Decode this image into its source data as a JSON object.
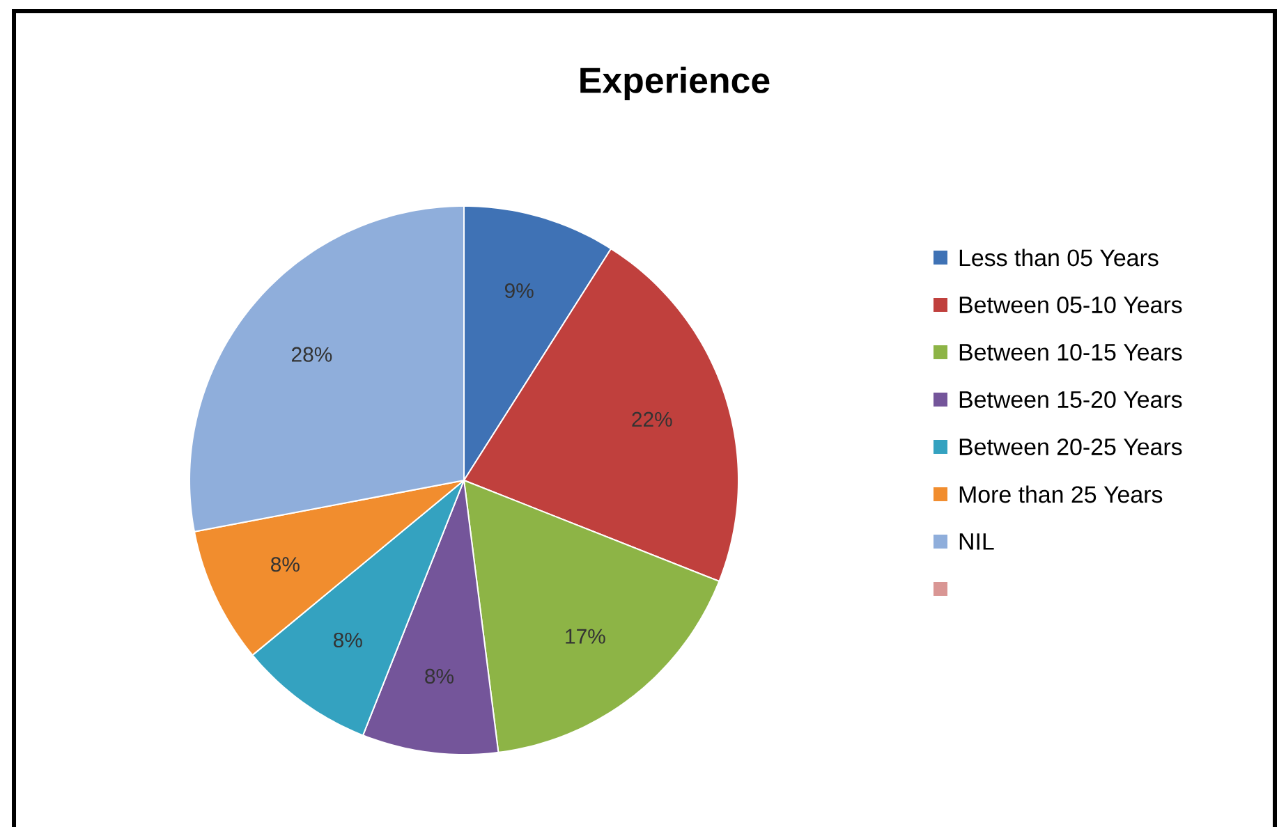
{
  "chart_data": {
    "type": "pie",
    "title": "Experience",
    "categories": [
      "Less than 05 Years",
      "Between 05-10 Years",
      "Between 10-15 Years",
      "Between 15-20 Years",
      "Between 20-25 Years",
      "More than 25 Years",
      "NIL",
      null
    ],
    "values": [
      9,
      22,
      17,
      8,
      8,
      8,
      28,
      0
    ],
    "value_labels": [
      "9%",
      "22%",
      "17%",
      "8%",
      "8%",
      "8%",
      "28%",
      null
    ],
    "colors": [
      "#3f72b5",
      "#c0403d",
      "#8db446",
      "#74559a",
      "#34a2c0",
      "#f18d2e",
      "#8faedb",
      "#d99694"
    ],
    "legend": "right"
  }
}
